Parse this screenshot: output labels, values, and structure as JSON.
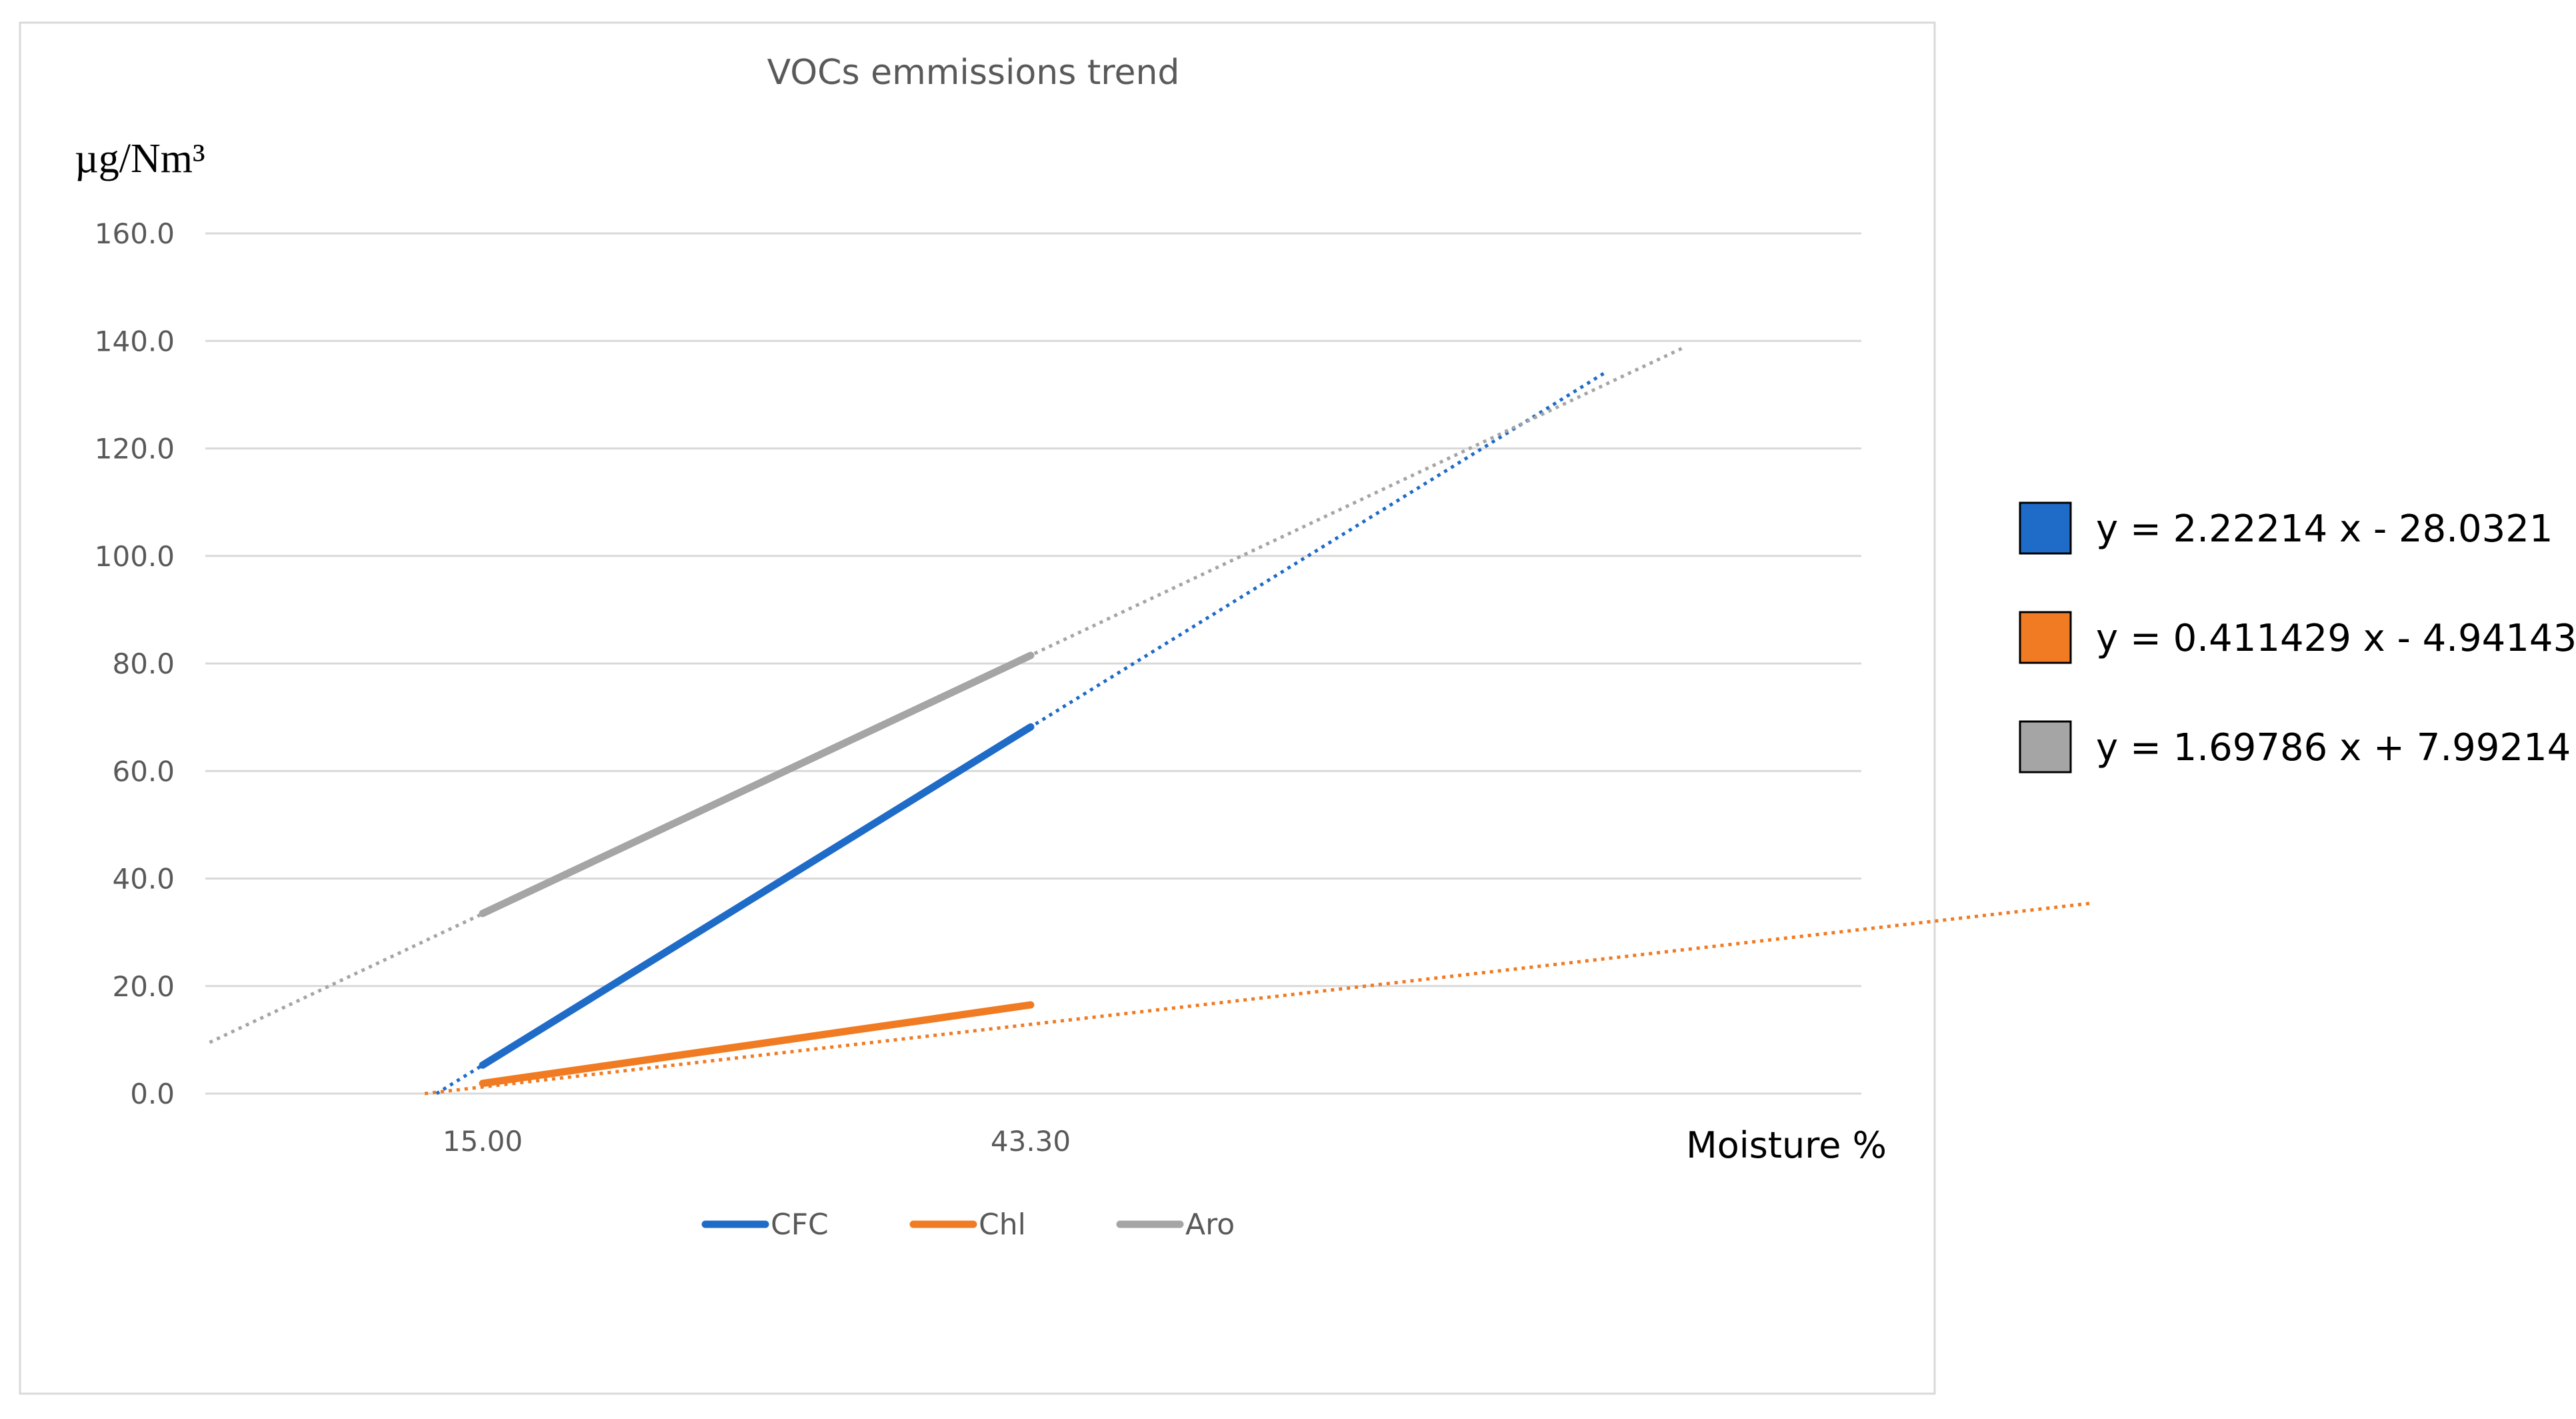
{
  "chart_data": {
    "type": "line",
    "title": "VOCs emmissions trend",
    "ylabel": "µg/Nm³",
    "xlabel": "Moisture %",
    "categories": [
      "15.00",
      "43.30"
    ],
    "x": [
      15.0,
      43.3
    ],
    "ylim": [
      0,
      160
    ],
    "yticks": [
      "0.0",
      "20.0",
      "40.0",
      "60.0",
      "80.0",
      "100.0",
      "120.0",
      "140.0",
      "160.0"
    ],
    "ytick_values": [
      0,
      20,
      40,
      60,
      80,
      100,
      120,
      140,
      160
    ],
    "grid": true,
    "legend_position": "bottom",
    "series": [
      {
        "name": "CFC",
        "color": "#1F6BC8",
        "values": [
          5.3,
          68.2
        ],
        "trendline": {
          "equation": "y = 2.22214 x - 28.0321",
          "slope": 2.22214,
          "intercept": -28.0321,
          "style": "dotted",
          "x_range": [
            12.6,
            72.9
          ]
        }
      },
      {
        "name": "Chl",
        "color": "#F07B22",
        "values": [
          1.9,
          16.5
        ],
        "trendline": {
          "equation": "y = 0.411429 x - 4.94143",
          "slope": 0.411429,
          "intercept": -4.94143,
          "style": "dotted",
          "x_range": [
            12.0,
            98.0
          ]
        }
      },
      {
        "name": "Aro",
        "color": "#A5A5A5",
        "values": [
          33.5,
          81.5
        ],
        "trendline": {
          "equation": "y = 1.69786 x + 7.99214",
          "slope": 1.69786,
          "intercept": 7.99214,
          "style": "dotted",
          "x_range": [
            0.9,
            77.0
          ]
        }
      }
    ]
  },
  "trend_legend": [
    {
      "equation": "y = 2.22214 x - 28.0321",
      "color": "#1F6BC8"
    },
    {
      "equation": "y = 0.411429 x - 4.94143",
      "color": "#F07B22"
    },
    {
      "equation": "y = 1.69786 x + 7.99214",
      "color": "#A5A5A5"
    }
  ]
}
